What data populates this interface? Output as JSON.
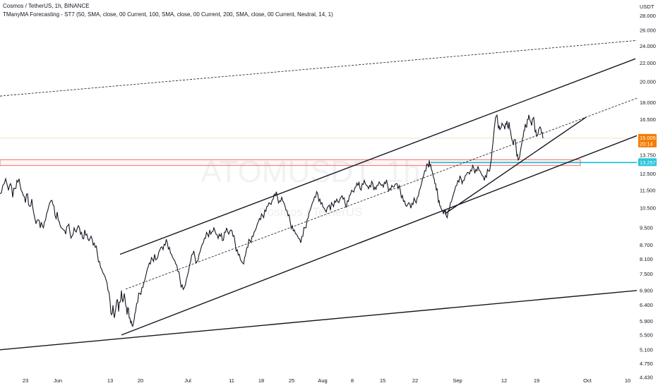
{
  "legend": {
    "symbol_line": "Cosmos / TetherUS, 1h, BINANCE",
    "indicator_line": "TManyMA Forecasting - ST7 (50, SMA, close, 00 Current, 100, SMA, close, 00 Current, 200, SMA, close, 00 Current, Neutral, 14, 1)"
  },
  "watermark": {
    "ticker": "ATOMUSDT, 1h",
    "pair": "Cosmos / TetherUS"
  },
  "colors": {
    "price_badge": "#f57c00",
    "level_badge": "#26c6da",
    "level_line": "#00bcd4",
    "red_zone": "#ef5350",
    "price_line": "#f5d6a8",
    "candles": "#131722"
  },
  "chart_data": {
    "type": "line",
    "title": "",
    "currency": "USDT",
    "y_scale": "log",
    "ylim": [
      4.43,
      29.5
    ],
    "y_ticks": [
      "28.000",
      "26.000",
      "24.000",
      "22.000",
      "20.000",
      "18.000",
      "16.500",
      "15.000",
      "13.750",
      "12.500",
      "11.500",
      "10.500",
      "9.500",
      "8.700",
      "8.100",
      "7.500",
      "6.900",
      "6.400",
      "5.900",
      "5.500",
      "5.100",
      "4.750",
      "4.430"
    ],
    "x_ticks": [
      "23",
      "Jun",
      "13",
      "20",
      "Jul",
      "11",
      "18",
      "25",
      "Aug",
      "8",
      "15",
      "22",
      "Sep",
      "12",
      "19",
      "Oct",
      "10"
    ],
    "last_price": "15.005",
    "countdown": "20:14",
    "highlight_level": "13.257",
    "highlight_level_sub": "",
    "red_zone": [
      13.05,
      13.45
    ],
    "series": [
      {
        "values": [
          [
            0,
            11.3
          ],
          [
            4,
            11.8
          ],
          [
            8,
            12.2
          ],
          [
            12,
            11.5
          ],
          [
            15,
            11.9
          ],
          [
            18,
            11.1
          ],
          [
            21,
            11.6
          ],
          [
            24,
            12.1
          ],
          [
            27,
            12.2
          ],
          [
            30,
            11.5
          ],
          [
            33,
            11.2
          ],
          [
            36,
            10.8
          ],
          [
            39,
            11.3
          ],
          [
            42,
            10.6
          ],
          [
            45,
            11.0
          ],
          [
            48,
            10.2
          ],
          [
            51,
            9.7
          ],
          [
            54,
            9.9
          ],
          [
            57,
            9.5
          ],
          [
            60,
            9.6
          ],
          [
            63,
            9.8
          ],
          [
            66,
            10.2
          ],
          [
            69,
            10.6
          ],
          [
            72,
            10.9
          ],
          [
            75,
            10.7
          ],
          [
            78,
            10.1
          ],
          [
            81,
            10.3
          ],
          [
            84,
            9.8
          ],
          [
            87,
            9.5
          ],
          [
            90,
            9.4
          ],
          [
            93,
            9.2
          ],
          [
            96,
            9.6
          ],
          [
            99,
            9.3
          ],
          [
            102,
            9.1
          ],
          [
            105,
            9.5
          ],
          [
            108,
            9.3
          ],
          [
            111,
            9.6
          ],
          [
            114,
            9.2
          ],
          [
            117,
            9.0
          ],
          [
            120,
            9.4
          ],
          [
            123,
            9.2
          ],
          [
            126,
            8.9
          ],
          [
            129,
            9.1
          ],
          [
            132,
            8.7
          ],
          [
            135,
            8.6
          ],
          [
            138,
            8.3
          ],
          [
            141,
            8.0
          ],
          [
            144,
            7.7
          ],
          [
            147,
            7.5
          ],
          [
            150,
            7.3
          ],
          [
            153,
            6.9
          ],
          [
            156,
            6.5
          ],
          [
            158,
            6.1
          ],
          [
            160,
            6.4
          ],
          [
            162,
            6.0
          ],
          [
            164,
            6.3
          ],
          [
            166,
            6.6
          ],
          [
            168,
            6.2
          ],
          [
            170,
            6.5
          ],
          [
            172,
            6.9
          ],
          [
            174,
            6.5
          ],
          [
            176,
            6.8
          ],
          [
            178,
            6.4
          ],
          [
            180,
            6.1
          ],
          [
            182,
            6.3
          ],
          [
            184,
            6.0
          ],
          [
            186,
            5.9
          ],
          [
            188,
            5.75
          ],
          [
            190,
            5.95
          ],
          [
            192,
            6.2
          ],
          [
            195,
            6.5
          ],
          [
            198,
            6.8
          ],
          [
            201,
            7.0
          ],
          [
            204,
            7.2
          ],
          [
            207,
            7.5
          ],
          [
            210,
            7.8
          ],
          [
            213,
            7.9
          ],
          [
            216,
            8.1
          ],
          [
            219,
            8.3
          ],
          [
            222,
            8.1
          ],
          [
            225,
            8.4
          ],
          [
            228,
            8.6
          ],
          [
            231,
            8.5
          ],
          [
            234,
            8.7
          ],
          [
            237,
            8.8
          ],
          [
            240,
            8.6
          ],
          [
            243,
            8.3
          ],
          [
            246,
            8.1
          ],
          [
            249,
            7.9
          ],
          [
            252,
            7.6
          ],
          [
            255,
            7.3
          ],
          [
            258,
            7.1
          ],
          [
            261,
            7.0
          ],
          [
            264,
            7.3
          ],
          [
            267,
            7.6
          ],
          [
            270,
            8.0
          ],
          [
            273,
            8.3
          ],
          [
            276,
            8.2
          ],
          [
            279,
            8.0
          ],
          [
            282,
            8.3
          ],
          [
            285,
            8.6
          ],
          [
            288,
            8.8
          ],
          [
            291,
            9.0
          ],
          [
            294,
            9.2
          ],
          [
            297,
            9.4
          ],
          [
            300,
            9.3
          ],
          [
            303,
            9.5
          ],
          [
            306,
            9.2
          ],
          [
            309,
            9.0
          ],
          [
            312,
            9.1
          ],
          [
            315,
            8.9
          ],
          [
            318,
            9.3
          ],
          [
            321,
            9.5
          ],
          [
            324,
            9.2
          ],
          [
            327,
            9.4
          ],
          [
            330,
            9.1
          ],
          [
            333,
            8.8
          ],
          [
            336,
            8.5
          ],
          [
            339,
            8.3
          ],
          [
            342,
            8.0
          ],
          [
            345,
            7.9
          ],
          [
            348,
            8.3
          ],
          [
            351,
            8.6
          ],
          [
            354,
            8.9
          ],
          [
            357,
            9.1
          ],
          [
            360,
            9.3
          ],
          [
            363,
            9.5
          ],
          [
            366,
            9.8
          ],
          [
            369,
            9.9
          ],
          [
            372,
            10.1
          ],
          [
            375,
            10.4
          ],
          [
            378,
            10.6
          ],
          [
            381,
            10.8
          ],
          [
            384,
            10.7
          ],
          [
            387,
            11.0
          ],
          [
            390,
            11.2
          ],
          [
            393,
            11.1
          ],
          [
            396,
            10.9
          ],
          [
            399,
            11.1
          ],
          [
            402,
            10.8
          ],
          [
            405,
            10.4
          ],
          [
            408,
            10.1
          ],
          [
            411,
            9.8
          ],
          [
            414,
            9.6
          ],
          [
            417,
            9.4
          ],
          [
            420,
            9.2
          ],
          [
            423,
            9.0
          ],
          [
            426,
            8.8
          ],
          [
            429,
            9.1
          ],
          [
            432,
            9.5
          ],
          [
            435,
            9.9
          ],
          [
            438,
            10.3
          ],
          [
            441,
            10.6
          ],
          [
            444,
            10.9
          ],
          [
            447,
            11.1
          ],
          [
            450,
            11.3
          ],
          [
            453,
            11.0
          ],
          [
            456,
            10.8
          ],
          [
            459,
            10.5
          ],
          [
            462,
            10.3
          ],
          [
            465,
            10.6
          ],
          [
            468,
            10.4
          ],
          [
            471,
            10.7
          ],
          [
            474,
            10.9
          ],
          [
            477,
            11.0
          ],
          [
            480,
            10.8
          ],
          [
            483,
            11.1
          ],
          [
            486,
            11.0
          ],
          [
            489,
            10.7
          ],
          [
            492,
            10.9
          ],
          [
            495,
            11.2
          ],
          [
            498,
            11.5
          ],
          [
            501,
            11.4
          ],
          [
            504,
            11.7
          ],
          [
            507,
            11.8
          ],
          [
            510,
            11.6
          ],
          [
            513,
            11.9
          ],
          [
            516,
            12.1
          ],
          [
            519,
            11.8
          ],
          [
            522,
            11.6
          ],
          [
            525,
            11.7
          ],
          [
            528,
            11.9
          ],
          [
            531,
            11.7
          ],
          [
            534,
            11.8
          ],
          [
            537,
            12.0
          ],
          [
            540,
            11.8
          ],
          [
            543,
            11.7
          ],
          [
            546,
            11.9
          ],
          [
            549,
            11.8
          ],
          [
            552,
            11.6
          ],
          [
            555,
            11.8
          ],
          [
            558,
            11.7
          ],
          [
            561,
            11.9
          ],
          [
            564,
            11.6
          ],
          [
            567,
            11.5
          ],
          [
            570,
            11.2
          ],
          [
            573,
            10.9
          ],
          [
            576,
            10.6
          ],
          [
            579,
            10.8
          ],
          [
            582,
            10.5
          ],
          [
            585,
            10.7
          ],
          [
            588,
            10.9
          ],
          [
            591,
            11.1
          ],
          [
            594,
            11.5
          ],
          [
            597,
            11.9
          ],
          [
            600,
            12.4
          ],
          [
            603,
            12.7
          ],
          [
            606,
            13.1
          ],
          [
            608,
            13.4
          ],
          [
            610,
            13.1
          ],
          [
            612,
            12.7
          ],
          [
            614,
            12.3
          ],
          [
            616,
            11.9
          ],
          [
            618,
            11.5
          ],
          [
            620,
            11.2
          ],
          [
            622,
            10.9
          ],
          [
            624,
            10.6
          ],
          [
            626,
            10.4
          ],
          [
            628,
            10.2
          ],
          [
            630,
            10.3
          ],
          [
            632,
            10.1
          ],
          [
            635,
            10.4
          ],
          [
            638,
            10.8
          ],
          [
            641,
            11.1
          ],
          [
            644,
            11.5
          ],
          [
            647,
            11.8
          ],
          [
            650,
            12.0
          ],
          [
            653,
            12.2
          ],
          [
            656,
            12.1
          ],
          [
            659,
            12.4
          ],
          [
            662,
            12.6
          ],
          [
            665,
            12.5
          ],
          [
            668,
            12.7
          ],
          [
            671,
            12.9
          ],
          [
            674,
            12.8
          ],
          [
            677,
            13.0
          ],
          [
            680,
            12.7
          ],
          [
            683,
            12.4
          ],
          [
            686,
            12.1
          ],
          [
            689,
            12.3
          ],
          [
            692,
            12.7
          ],
          [
            695,
            13.2
          ],
          [
            697,
            14.1
          ],
          [
            699,
            15.1
          ],
          [
            701,
            16.2
          ],
          [
            703,
            16.8
          ],
          [
            705,
            16.3
          ],
          [
            707,
            16.0
          ],
          [
            709,
            15.8
          ],
          [
            711,
            16.2
          ],
          [
            713,
            16.0
          ],
          [
            715,
            15.7
          ],
          [
            717,
            16.1
          ],
          [
            719,
            15.9
          ],
          [
            721,
            16.3
          ],
          [
            723,
            15.6
          ],
          [
            725,
            14.9
          ],
          [
            727,
            14.5
          ],
          [
            729,
            14.9
          ],
          [
            731,
            14.3
          ],
          [
            733,
            13.8
          ],
          [
            735,
            13.5
          ],
          [
            737,
            14.0
          ],
          [
            739,
            14.6
          ],
          [
            741,
            15.1
          ],
          [
            743,
            15.6
          ],
          [
            745,
            15.9
          ],
          [
            747,
            16.5
          ],
          [
            749,
            16.9
          ],
          [
            751,
            16.4
          ],
          [
            753,
            16.0
          ],
          [
            755,
            16.6
          ],
          [
            757,
            16.1
          ],
          [
            759,
            15.6
          ],
          [
            761,
            15.2
          ],
          [
            763,
            15.7
          ],
          [
            765,
            15.9
          ],
          [
            767,
            15.4
          ],
          [
            769,
            15.0
          ]
        ]
      }
    ],
    "trendlines": [
      {
        "style": "solid",
        "from": [
          170,
          8.3
        ],
        "to": [
          900,
          22.5
        ]
      },
      {
        "style": "solid",
        "from": [
          172,
          5.5
        ],
        "to": [
          902,
          15.2
        ]
      },
      {
        "style": "dashed",
        "from": [
          178,
          6.95
        ],
        "to": [
          902,
          18.4
        ]
      },
      {
        "style": "dashed",
        "from": [
          0,
          18.6
        ],
        "to": [
          902,
          24.7
        ]
      },
      {
        "style": "solid",
        "from": [
          0,
          5.1
        ],
        "to": [
          902,
          6.9
        ]
      },
      {
        "style": "solid",
        "from": [
          630,
          10.2
        ],
        "to": [
          830,
          16.7
        ]
      }
    ]
  }
}
